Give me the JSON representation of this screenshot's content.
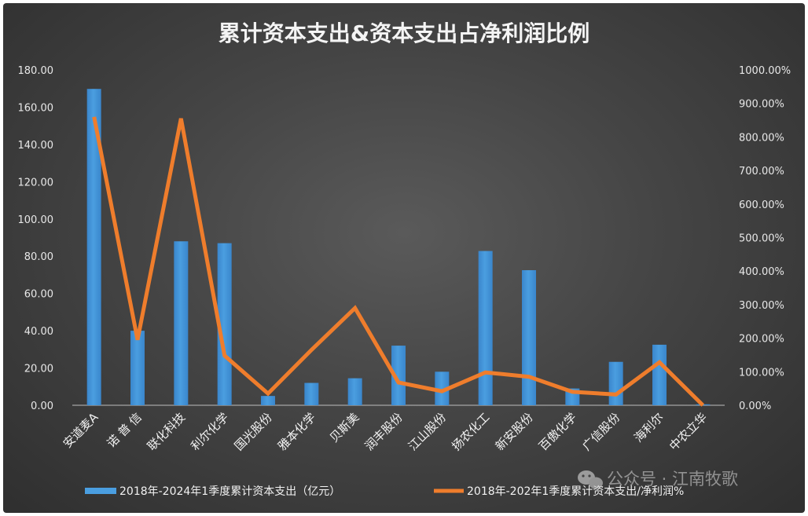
{
  "chart_data": {
    "type": "bar+line",
    "title": "累计资本支出&资本支出占净利润比例",
    "categories": [
      "安道麦A",
      "诺 普 信",
      "联化科技",
      "利尔化学",
      "国光股份",
      "雅本化学",
      "贝斯美",
      "润丰股份",
      "江山股份",
      "扬农化工",
      "新安股份",
      "百傲化学",
      "广信股份",
      "海利尔",
      "中农立华"
    ],
    "series": [
      {
        "name": "2018年-2024年1季度累计资本支出（亿元）",
        "type": "bar",
        "axis": "left",
        "color": "#4a9ee0",
        "values": [
          169.8,
          40.0,
          88.0,
          87.0,
          5.0,
          12.0,
          14.5,
          32.0,
          18.0,
          82.8,
          72.5,
          9.0,
          23.3,
          32.5,
          0.5
        ]
      },
      {
        "name": "2018年-202年1季度累计资本支出/净利润%",
        "type": "line",
        "axis": "right",
        "color": "#ef7d2c",
        "values": [
          860,
          195,
          855,
          148,
          35,
          165,
          290,
          68,
          42,
          98,
          85,
          40,
          32,
          128,
          0
        ]
      }
    ],
    "y_left": {
      "min": 0,
      "max": 180,
      "step": 20,
      "ticks": [
        "0.00",
        "20.00",
        "40.00",
        "60.00",
        "80.00",
        "100.00",
        "120.00",
        "140.00",
        "160.00",
        "180.00"
      ]
    },
    "y_right": {
      "min": 0,
      "max": 1000,
      "step": 100,
      "ticks": [
        "0.00%",
        "100.00%",
        "200.00%",
        "300.00%",
        "400.00%",
        "500.00%",
        "600.00%",
        "700.00%",
        "800.00%",
        "900.00%",
        "1000.00%"
      ]
    },
    "grid": false,
    "legend": "bottom",
    "background": "#444444"
  },
  "watermark": {
    "text": "公众号 · 江南牧歌"
  }
}
